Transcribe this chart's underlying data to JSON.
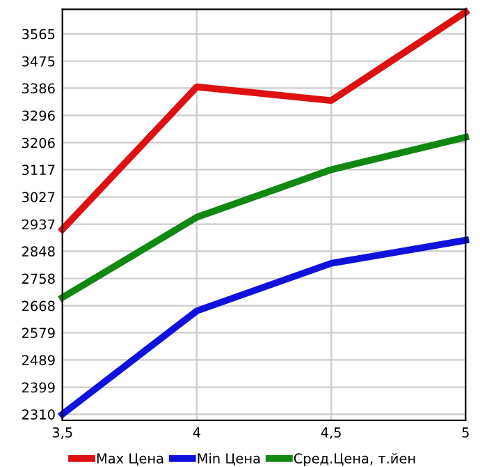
{
  "chart_data": {
    "type": "line",
    "x": [
      3.5,
      4,
      4.5,
      5
    ],
    "series": [
      {
        "name": "Max Цена",
        "color": "#dd1111",
        "values": [
          2920,
          3390,
          3345,
          3637
        ]
      },
      {
        "name": "Min Цена",
        "color": "#1111dd",
        "values": [
          2310,
          2651,
          2808,
          2884
        ]
      },
      {
        "name": "Сред.Цена, т.йен",
        "color": "#118811",
        "values": [
          2695,
          2960,
          3117,
          3224
        ]
      }
    ],
    "xlim": [
      3.5,
      5
    ],
    "ylim": [
      2290,
      3646
    ],
    "xticks": [
      {
        "value": 3.5,
        "label": "3,5"
      },
      {
        "value": 4,
        "label": "4"
      },
      {
        "value": 4.5,
        "label": "4,5"
      },
      {
        "value": 5,
        "label": "5"
      }
    ],
    "yticks": [
      2310,
      2399,
      2489,
      2579,
      2668,
      2758,
      2848,
      2937,
      3027,
      3117,
      3206,
      3296,
      3386,
      3475,
      3565
    ],
    "grid": true,
    "legend": "bottom",
    "marker": "none",
    "line_style": "solid"
  }
}
